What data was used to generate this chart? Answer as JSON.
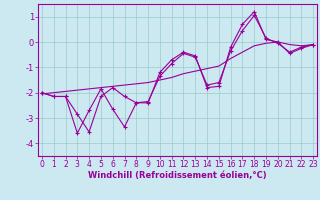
{
  "xlabel": "Windchill (Refroidissement éolien,°C)",
  "background_color": "#cce8f0",
  "grid_color": "#99cccc",
  "line_color": "#990099",
  "x": [
    0,
    1,
    2,
    3,
    4,
    5,
    6,
    7,
    8,
    9,
    10,
    11,
    12,
    13,
    14,
    15,
    16,
    17,
    18,
    19,
    20,
    21,
    22,
    23
  ],
  "y_jagged": [
    -2.0,
    -2.15,
    -2.15,
    -3.6,
    -2.7,
    -1.85,
    -2.65,
    -3.35,
    -2.4,
    -2.4,
    -1.2,
    -0.7,
    -0.4,
    -0.55,
    -1.8,
    -1.75,
    -0.2,
    0.7,
    1.2,
    0.1,
    0.0,
    -0.45,
    -0.25,
    -0.1
  ],
  "y_smooth": [
    -2.0,
    -2.15,
    -2.15,
    -2.85,
    -3.55,
    -2.15,
    -1.8,
    -2.15,
    -2.4,
    -2.35,
    -1.35,
    -0.85,
    -0.45,
    -0.6,
    -1.7,
    -1.6,
    -0.35,
    0.45,
    1.05,
    0.15,
    -0.05,
    -0.4,
    -0.2,
    -0.1
  ],
  "y_trend": [
    -2.05,
    -2.0,
    -1.95,
    -1.9,
    -1.85,
    -1.8,
    -1.75,
    -1.7,
    -1.65,
    -1.6,
    -1.5,
    -1.4,
    -1.25,
    -1.15,
    -1.05,
    -0.95,
    -0.65,
    -0.4,
    -0.15,
    -0.05,
    -0.0,
    -0.1,
    -0.15,
    -0.1
  ],
  "ylim": [
    -4.5,
    1.5
  ],
  "xlim_min": 0,
  "xlim_max": 23,
  "yticks": [
    -4,
    -3,
    -2,
    -1,
    0,
    1
  ],
  "ytick_labels": [
    "-4",
    "-3",
    "-2",
    "-1",
    "0",
    "1"
  ],
  "xticks": [
    0,
    1,
    2,
    3,
    4,
    5,
    6,
    7,
    8,
    9,
    10,
    11,
    12,
    13,
    14,
    15,
    16,
    17,
    18,
    19,
    20,
    21,
    22,
    23
  ],
  "tick_fontsize": 5.5,
  "xlabel_fontsize": 6.0,
  "marker_size": 3.5,
  "line_width": 0.8
}
